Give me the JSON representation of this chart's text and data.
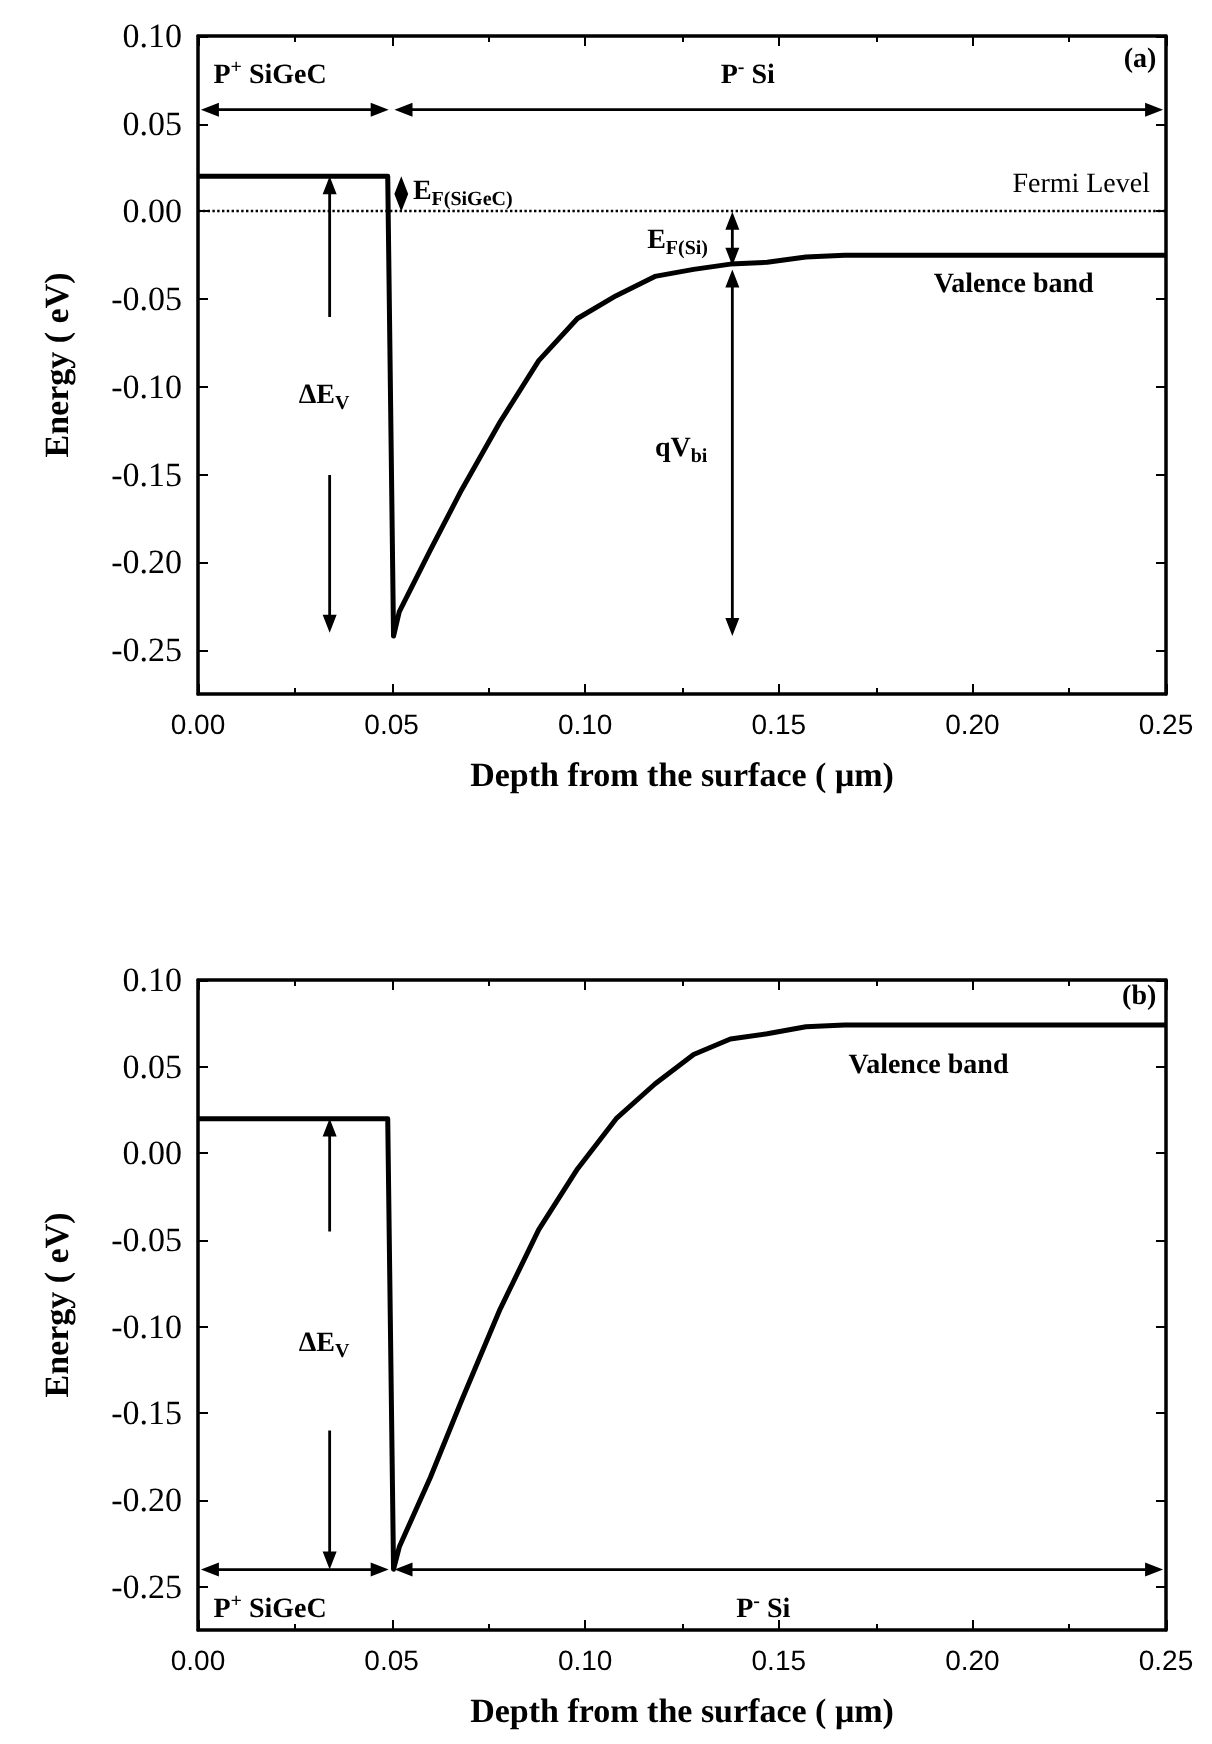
{
  "chart_data": [
    {
      "type": "line",
      "xlabel": "Depth from the surface ( μm)",
      "ylabel": "Energy ( eV)",
      "xlim": [
        0,
        0.25
      ],
      "ylim": [
        -0.275,
        0.1
      ],
      "xticks": [
        {
          "value": 0,
          "label": "0.00"
        },
        {
          "value": 0.05,
          "label": "0.05"
        },
        {
          "value": 0.1,
          "label": "0.10"
        },
        {
          "value": 0.15,
          "label": "0.15"
        },
        {
          "value": 0.2,
          "label": "0.20"
        },
        {
          "value": 0.25,
          "label": "0.25"
        }
      ],
      "yticks": [
        {
          "value": -0.25,
          "label": "-0.25"
        },
        {
          "value": -0.2,
          "label": "-0.20"
        },
        {
          "value": -0.15,
          "label": "-0.15"
        },
        {
          "value": -0.1,
          "label": "-0.10"
        },
        {
          "value": -0.05,
          "label": "-0.05"
        },
        {
          "value": 0,
          "label": "0.00"
        },
        {
          "value": 0.05,
          "label": "0.05"
        },
        {
          "value": 0.1,
          "label": "0.10"
        }
      ],
      "grid": false,
      "marker": "none",
      "line_style": "solid",
      "series": [
        {
          "color": "#000000",
          "x": [
            0,
            0.049,
            0.0505,
            0.052,
            0.06,
            0.068,
            0.078,
            0.088,
            0.098,
            0.108,
            0.118,
            0.128,
            0.1375,
            0.147,
            0.157,
            0.167,
            0.25
          ],
          "values": [
            0.02,
            0.02,
            -0.242,
            -0.228,
            -0.193,
            -0.159,
            -0.12,
            -0.085,
            -0.061,
            -0.048,
            -0.037,
            -0.033,
            -0.03,
            -0.029,
            -0.026,
            -0.025,
            -0.025
          ]
        }
      ],
      "ref_lines": [
        {
          "axis": "y",
          "value": 0,
          "label": "Fermi Level",
          "color": "#000000",
          "line_style": "dotted"
        }
      ],
      "annotations": [
        "(a)",
        "P$^{+}$ SiGeC",
        "P$^{-}$ Si",
        "E$_{F(SiGeC)}$",
        "E$_{F(Si)}$",
        "ΔE$_{V}$",
        "qV$_{bi}$",
        "Valence band"
      ]
    },
    {
      "type": "line",
      "xlabel": "Depth from the surface ( μm)",
      "ylabel": "Energy ( eV)",
      "xlim": [
        0,
        0.25
      ],
      "ylim": [
        -0.275,
        0.1
      ],
      "xticks": [
        {
          "value": 0,
          "label": "0.00"
        },
        {
          "value": 0.05,
          "label": "0.05"
        },
        {
          "value": 0.1,
          "label": "0.10"
        },
        {
          "value": 0.15,
          "label": "0.15"
        },
        {
          "value": 0.2,
          "label": "0.20"
        },
        {
          "value": 0.25,
          "label": "0.25"
        }
      ],
      "yticks": [
        {
          "value": -0.25,
          "label": "-0.25"
        },
        {
          "value": -0.2,
          "label": "-0.20"
        },
        {
          "value": -0.15,
          "label": "-0.15"
        },
        {
          "value": -0.1,
          "label": "-0.10"
        },
        {
          "value": -0.05,
          "label": "-0.05"
        },
        {
          "value": 0,
          "label": "0.00"
        },
        {
          "value": 0.05,
          "label": "0.05"
        },
        {
          "value": 0.1,
          "label": "0.10"
        }
      ],
      "grid": false,
      "marker": "none",
      "line_style": "solid",
      "series": [
        {
          "color": "#000000",
          "x": [
            0,
            0.049,
            0.0505,
            0.052,
            0.06,
            0.068,
            0.078,
            0.088,
            0.098,
            0.108,
            0.118,
            0.128,
            0.1375,
            0.147,
            0.157,
            0.167,
            0.25
          ],
          "values": [
            0.02,
            0.02,
            -0.24,
            -0.227,
            -0.187,
            -0.143,
            -0.09,
            -0.044,
            -0.009,
            0.02,
            0.04,
            0.057,
            0.066,
            0.069,
            0.073,
            0.074,
            0.074
          ]
        }
      ],
      "annotations": [
        "(b)",
        "Valence band",
        "ΔE$_{V}$",
        "P$^{+}$ SiGeC",
        "P$^{-}$ Si"
      ]
    }
  ]
}
